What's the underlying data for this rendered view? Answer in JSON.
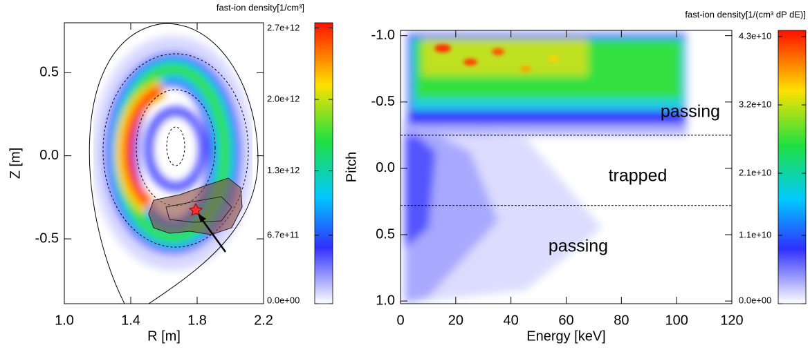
{
  "chart_data": [
    {
      "type": "heatmap",
      "xlabel": "R [m]",
      "ylabel": "Z [m]",
      "xlim": [
        1.0,
        2.2
      ],
      "xticks": [
        {
          "value": 1,
          "label": "1.0"
        },
        1.4,
        1.8,
        2.2
      ],
      "ylim": [
        -0.89,
        0.8
      ],
      "yticks": [
        -0.5,
        {
          "value": 0,
          "label": "0.0"
        },
        0.5
      ],
      "colorbar_title": "fast-ion density[1/cm³]",
      "clim": [
        0,
        2750000000000.0
      ],
      "colorbar_ticks": [
        {
          "value": 0,
          "label": "0.0e+00"
        },
        {
          "value": 670000000000.0,
          "label": "6.7e+11"
        },
        {
          "value": 1300000000000.0,
          "label": "1.3e+12"
        },
        {
          "value": 2000000000000.0,
          "label": "2.0e+12"
        },
        {
          "value": 2700000000000.0,
          "label": "2.7e+12"
        }
      ]
    },
    {
      "type": "heatmap",
      "xlabel": "Energy [keV]",
      "ylabel": "Pitch",
      "xlim": [
        0,
        120
      ],
      "xticks": [
        0,
        20,
        40,
        60,
        80,
        100,
        120
      ],
      "ylim": [
        -1.04,
        1.02
      ],
      "y_inverted": true,
      "yticks": [
        {
          "value": -1,
          "label": "-1.0"
        },
        -0.5,
        {
          "value": 0,
          "label": "0.0"
        },
        0.5,
        {
          "value": 1,
          "label": "1.0"
        }
      ],
      "hlines": [
        -0.25,
        0.28
      ],
      "annotations": [
        "passing",
        "trapped",
        "passing"
      ],
      "colorbar_title": "fast-ion density[1/(cm³ dP dE)]",
      "clim": [
        0,
        44000000000.0
      ],
      "colorbar_ticks": [
        {
          "value": 0,
          "label": "0.0e+00"
        },
        {
          "value": 11000000000.0,
          "label": "1.1e+10"
        },
        {
          "value": 21000000000.0,
          "label": "2.1e+10"
        },
        {
          "value": 32000000000.0,
          "label": "3.2e+10"
        },
        {
          "value": 43000000000.0,
          "label": "4.3e+10"
        }
      ]
    }
  ]
}
